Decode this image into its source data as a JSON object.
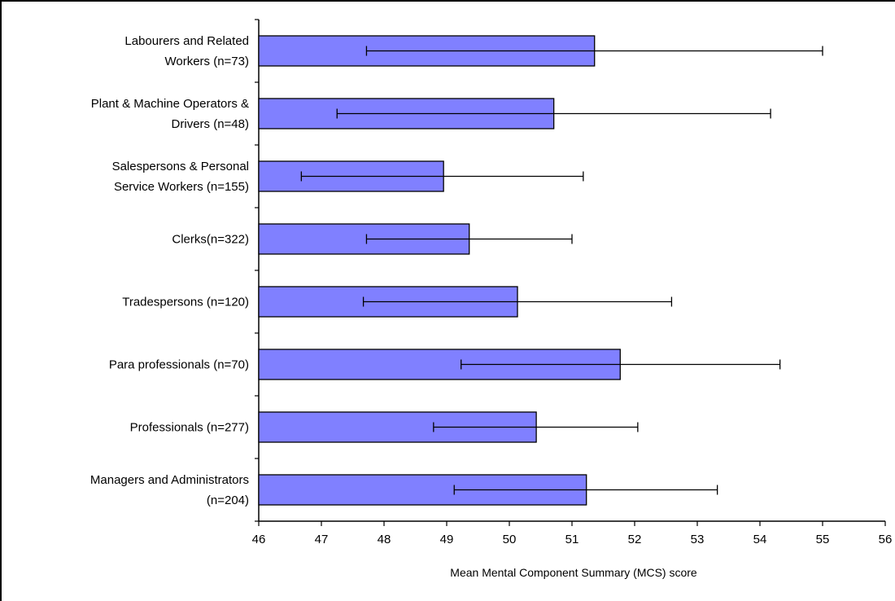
{
  "chart_data": {
    "type": "bar",
    "orientation": "horizontal",
    "title": "",
    "xlabel": "Mean Mental Component Summary (MCS) score",
    "ylabel": "",
    "xlim": [
      46,
      56
    ],
    "x_ticks": [
      "46",
      "47",
      "48",
      "49",
      "50",
      "51",
      "52",
      "53",
      "54",
      "55",
      "56"
    ],
    "grid": false,
    "legend": "none",
    "bar_color": "#8080ff",
    "categories": [
      [
        "Labourers and Related",
        "Workers (n=73)"
      ],
      [
        "Plant & Machine Operators &",
        "Drivers (n=48)"
      ],
      [
        "Salespersons & Personal",
        "Service Workers (n=155)"
      ],
      [
        "Clerks(n=322)"
      ],
      [
        "Tradespersons (n=120)"
      ],
      [
        "Para professionals (n=70)"
      ],
      [
        "Professionals (n=277)"
      ],
      [
        "Managers and Administrators",
        "(n=204)"
      ]
    ],
    "values": [
      51.36,
      50.71,
      48.95,
      49.36,
      50.13,
      51.77,
      50.43,
      51.23
    ],
    "error_low": [
      47.72,
      47.25,
      46.68,
      47.72,
      47.67,
      49.23,
      48.79,
      49.12
    ],
    "error_high": [
      55.0,
      54.17,
      51.18,
      51.0,
      52.59,
      54.32,
      52.05,
      53.32
    ]
  }
}
